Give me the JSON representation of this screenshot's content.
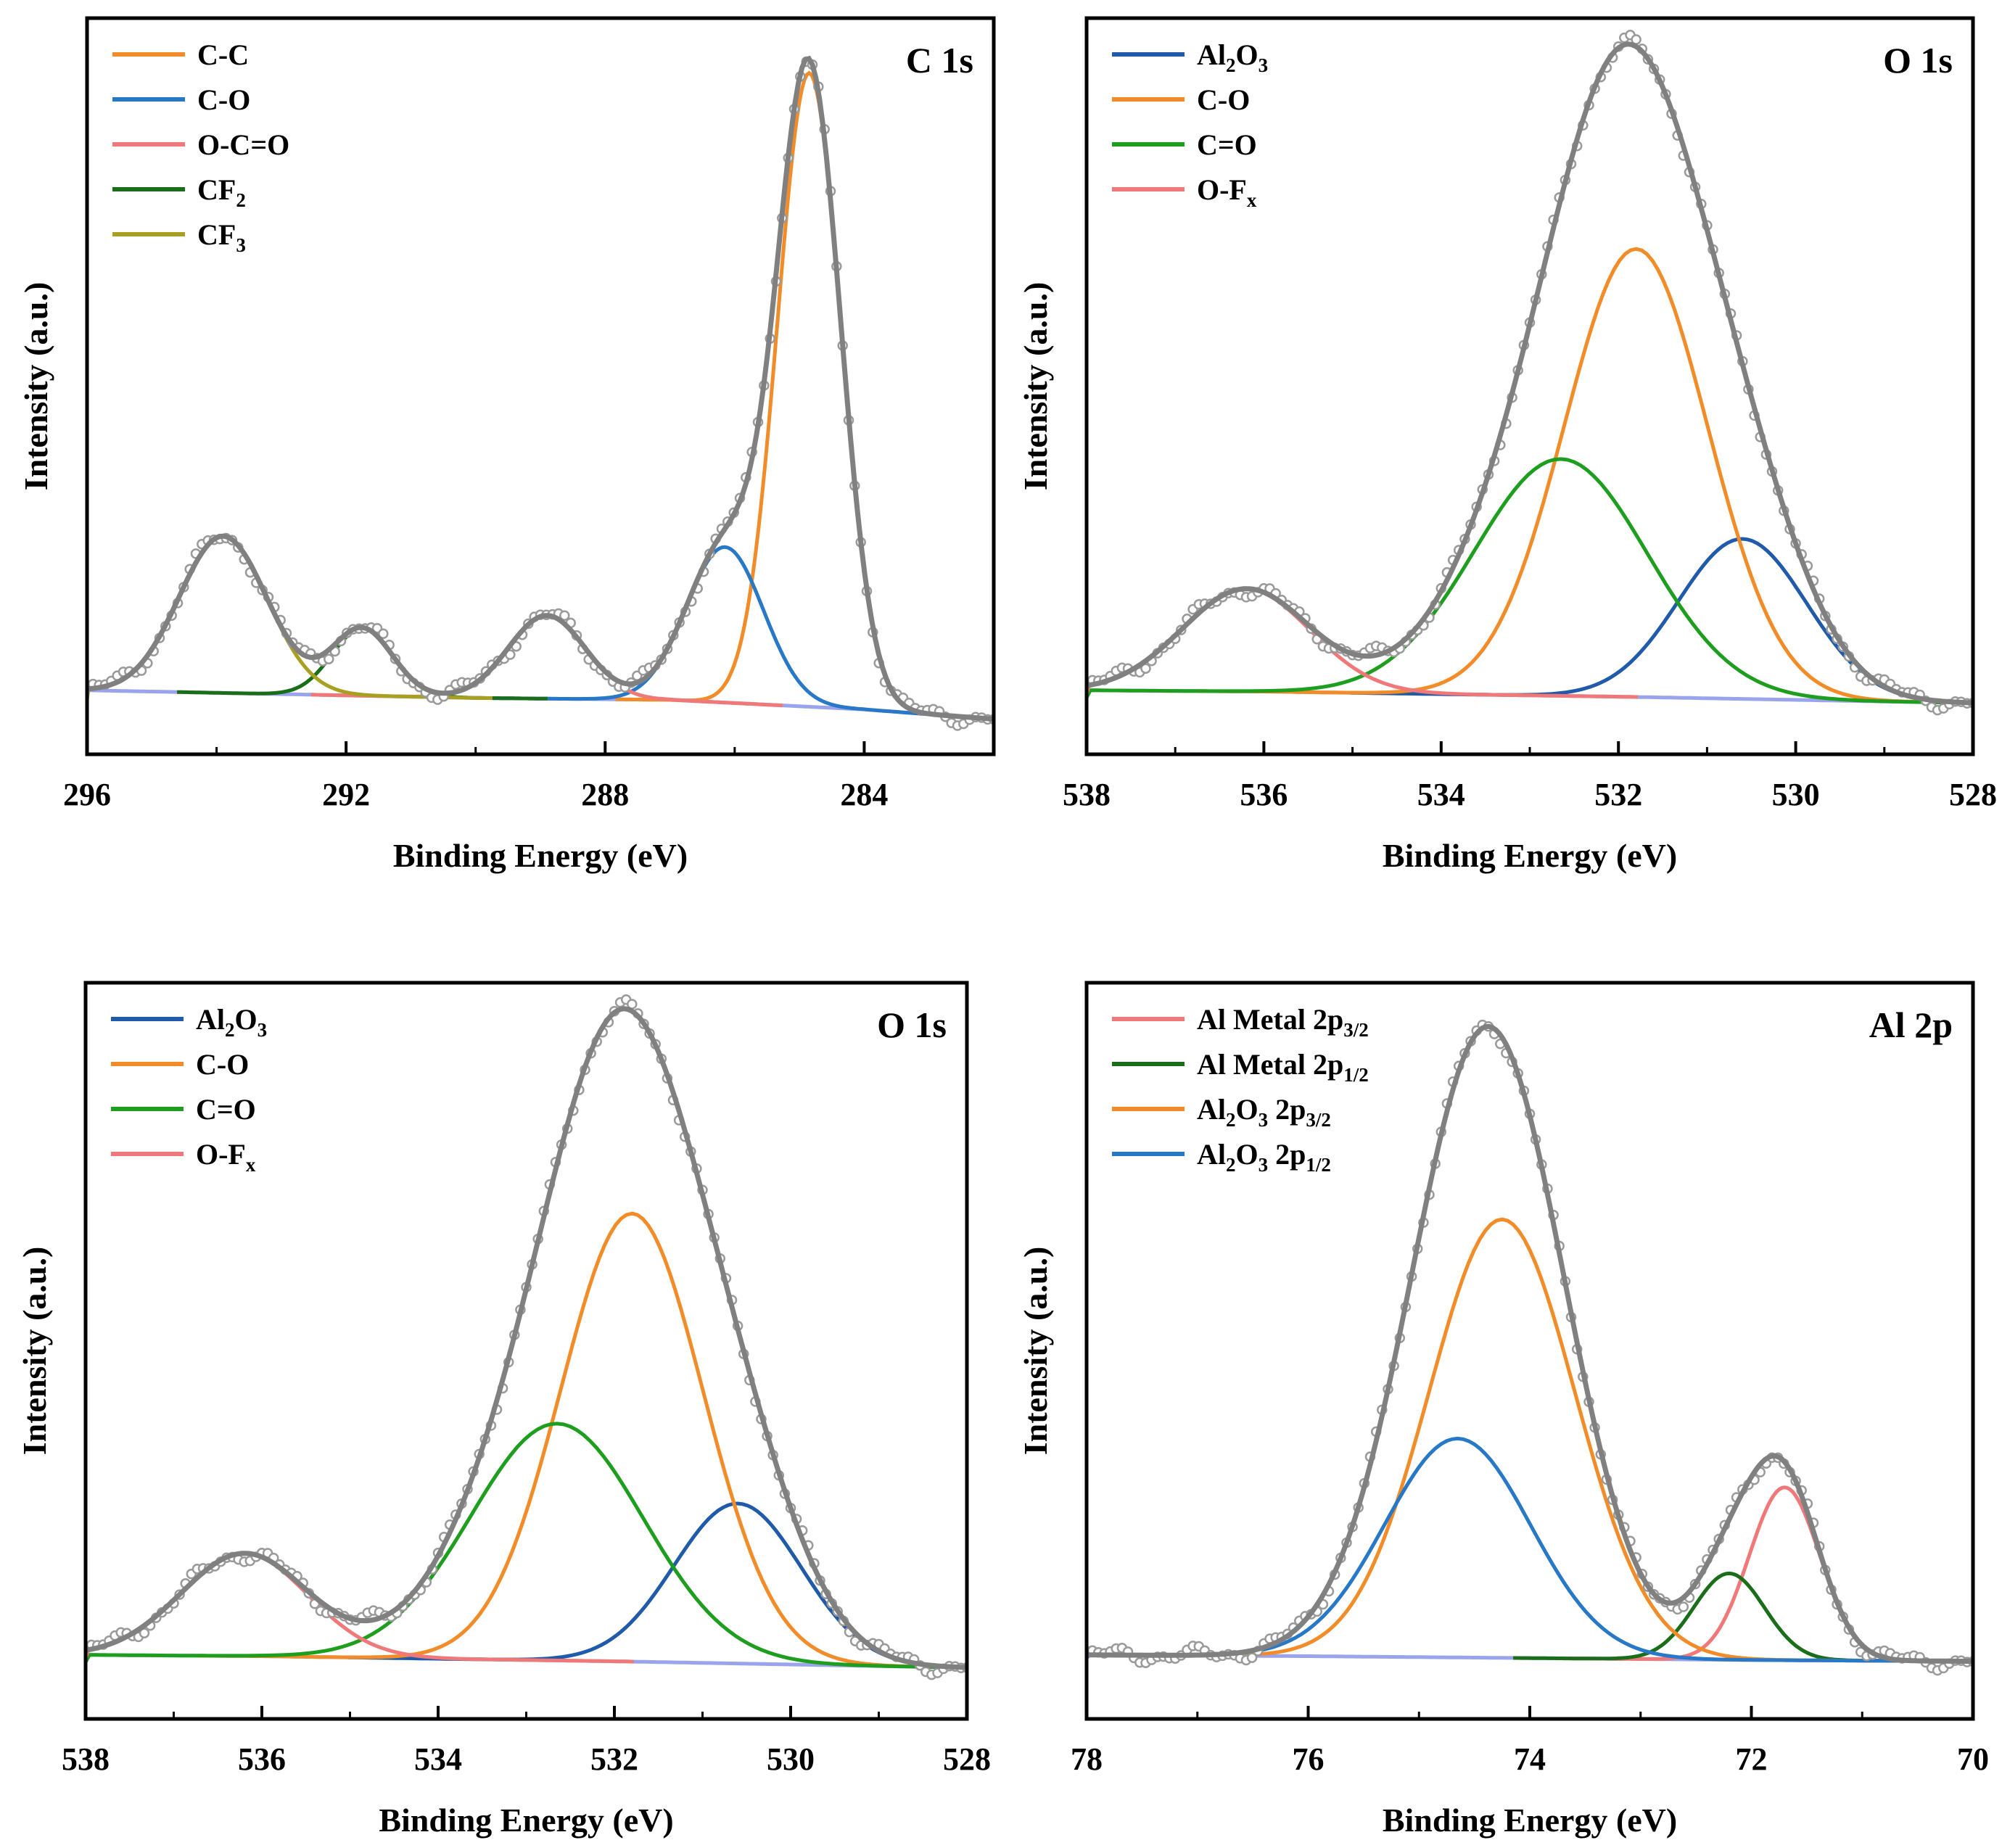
{
  "chart_data": [
    {
      "type": "line",
      "title": "C 1s",
      "xlabel": "Binding Energy (eV)",
      "ylabel": "Intensity (a.u.)",
      "xlim": [
        296,
        282
      ],
      "ylim": [
        -0.1,
        1.05
      ],
      "x_reversed": true,
      "xticks": [
        296,
        292,
        288,
        284
      ],
      "xtick_labels": [
        "296",
        "292",
        "288",
        "284"
      ],
      "legend_position": "top-left",
      "legend": [
        {
          "label": "C-C",
          "sub": "",
          "color": "#F28C28"
        },
        {
          "label": "C-O",
          "sub": "",
          "color": "#2878C8"
        },
        {
          "label": "O-C=O",
          "sub": "",
          "color": "#F07878"
        },
        {
          "label": "CF",
          "sub": "2",
          "color": "#1A6E1A"
        },
        {
          "label": "CF",
          "sub": "3",
          "color": "#A8A020"
        }
      ],
      "background": {
        "x": [
          296,
          290,
          287,
          284,
          282
        ],
        "y": [
          0.0,
          -0.012,
          -0.015,
          -0.03,
          -0.045
        ]
      },
      "components": [
        {
          "name": "C-C",
          "color": "#F28C28",
          "center": 284.85,
          "height": 0.99,
          "fwhm": 1.15
        },
        {
          "name": "C-O",
          "color": "#2878C8",
          "center": 286.15,
          "height": 0.243,
          "fwhm": 1.4
        },
        {
          "name": "O-C=O",
          "color": "#F07878",
          "center": 288.9,
          "height": 0.13,
          "fwhm": 1.4
        },
        {
          "name": "CF2",
          "color": "#1A6E1A",
          "center": 291.75,
          "height": 0.105,
          "fwhm": 1.1
        },
        {
          "name": "CF3",
          "color": "#A8A020",
          "center": 293.9,
          "height": 0.245,
          "fwhm": 1.6
        }
      ],
      "envelope_color": "#808080",
      "background_color": "#9AA4EC",
      "raw_data_color": "#9A9A9A"
    },
    {
      "type": "line",
      "title": "O 1s",
      "xlabel": "Binding Energy (eV)",
      "ylabel": "Intensity (a.u.)",
      "xlim": [
        538,
        528
      ],
      "ylim": [
        -0.1,
        1.05
      ],
      "x_reversed": true,
      "xticks": [
        538,
        536,
        534,
        532,
        530,
        528
      ],
      "xtick_labels": [
        "538",
        "536",
        "534",
        "532",
        "530",
        "528"
      ],
      "legend_position": "top-left",
      "legend": [
        {
          "label": "Al",
          "sub": "2",
          "label2": "O",
          "sub2": "3",
          "color": "#1F5BAA"
        },
        {
          "label": "C-O",
          "sub": "",
          "color": "#F28C28"
        },
        {
          "label": "C=O",
          "sub": "",
          "color": "#1E9E1E"
        },
        {
          "label": "O-F",
          "sub": "x",
          "color": "#F07878"
        }
      ],
      "background": {
        "x": [
          538,
          536,
          534,
          532,
          530,
          528
        ],
        "y": [
          0.0,
          -0.002,
          -0.006,
          -0.01,
          -0.015,
          -0.02
        ]
      },
      "components": [
        {
          "name": "Al2O3",
          "color": "#1F5BAA",
          "center": 530.6,
          "height": 0.25,
          "fwhm": 1.7
        },
        {
          "name": "C-O",
          "color": "#F28C28",
          "center": 531.8,
          "height": 0.7,
          "fwhm": 1.9
        },
        {
          "name": "C=O",
          "color": "#1E9E1E",
          "center": 532.65,
          "height": 0.37,
          "fwhm": 2.3
        },
        {
          "name": "O-Fx",
          "color": "#F07878",
          "center": 536.2,
          "height": 0.16,
          "fwhm": 1.7
        }
      ],
      "envelope_color": "#808080",
      "background_color": "#9AA4EC",
      "raw_data_color": "#9A9A9A"
    },
    {
      "type": "line",
      "title": "O 1s",
      "xlabel": "Binding Energy (eV)",
      "ylabel": "Intensity (a.u.)",
      "xlim": [
        538,
        528
      ],
      "ylim": [
        -0.1,
        1.05
      ],
      "x_reversed": true,
      "xticks": [
        538,
        536,
        534,
        532,
        530,
        528
      ],
      "xtick_labels": [
        "538",
        "536",
        "534",
        "532",
        "530",
        "528"
      ],
      "legend_position": "top-left",
      "legend": [
        {
          "label": "Al",
          "sub": "2",
          "label2": "O",
          "sub2": "3",
          "color": "#1F5BAA"
        },
        {
          "label": "C-O",
          "sub": "",
          "color": "#F28C28"
        },
        {
          "label": "C=O",
          "sub": "",
          "color": "#1E9E1E"
        },
        {
          "label": "O-F",
          "sub": "x",
          "color": "#F07878"
        }
      ],
      "background": {
        "x": [
          538,
          536,
          534,
          532,
          530,
          528
        ],
        "y": [
          0.0,
          -0.002,
          -0.006,
          -0.01,
          -0.015,
          -0.02
        ]
      },
      "components": [
        {
          "name": "Al2O3",
          "color": "#1F5BAA",
          "center": 530.6,
          "height": 0.25,
          "fwhm": 1.7
        },
        {
          "name": "C-O",
          "color": "#F28C28",
          "center": 531.8,
          "height": 0.7,
          "fwhm": 1.9
        },
        {
          "name": "C=O",
          "color": "#1E9E1E",
          "center": 532.65,
          "height": 0.37,
          "fwhm": 2.3
        },
        {
          "name": "O-Fx",
          "color": "#F07878",
          "center": 536.2,
          "height": 0.16,
          "fwhm": 1.7
        }
      ],
      "envelope_color": "#808080",
      "background_color": "#9AA4EC",
      "raw_data_color": "#9A9A9A"
    },
    {
      "type": "line",
      "title": "Al 2p",
      "xlabel": "Binding Energy (eV)",
      "ylabel": "Intensity (a.u.)",
      "xlim": [
        78,
        70
      ],
      "ylim": [
        -0.1,
        1.05
      ],
      "x_reversed": true,
      "xticks": [
        78,
        76,
        74,
        72,
        70
      ],
      "xtick_labels": [
        "78",
        "76",
        "74",
        "72",
        "70"
      ],
      "legend_position": "top-left",
      "legend": [
        {
          "label": "Al Metal 2p",
          "sub": "3/2",
          "color": "#F07878"
        },
        {
          "label": "Al Metal 2p",
          "sub": "1/2",
          "color": "#1A6E1A"
        },
        {
          "label": "Al",
          "sub": "2",
          "label2": "O",
          "sub2": "3",
          "label3": " 2p",
          "sub3": "3/2",
          "color": "#F28C28"
        },
        {
          "label": "Al",
          "sub": "2",
          "label2": "O",
          "sub2": "3",
          "label3": " 2p",
          "sub3": "1/2",
          "color": "#2878C8"
        }
      ],
      "background": {
        "x": [
          78,
          76,
          74,
          72,
          70
        ],
        "y": [
          0.0,
          -0.002,
          -0.005,
          -0.008,
          -0.01
        ]
      },
      "components": [
        {
          "name": "Al Metal 2p3/2",
          "color": "#F07878",
          "center": 71.7,
          "height": 0.27,
          "fwhm": 0.75
        },
        {
          "name": "Al Metal 2p1/2",
          "color": "#1A6E1A",
          "center": 72.2,
          "height": 0.135,
          "fwhm": 0.75
        },
        {
          "name": "Al2O3 2p3/2",
          "color": "#F28C28",
          "center": 74.25,
          "height": 0.685,
          "fwhm": 1.55
        },
        {
          "name": "Al2O3 2p1/2",
          "color": "#2878C8",
          "center": 74.65,
          "height": 0.342,
          "fwhm": 1.55
        }
      ],
      "envelope_color": "#808080",
      "background_color": "#9AA4EC",
      "raw_data_color": "#9A9A9A"
    }
  ]
}
